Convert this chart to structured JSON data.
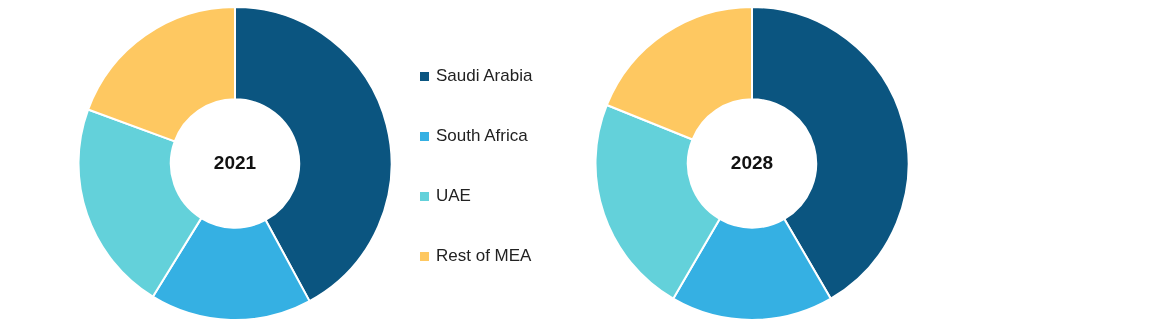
{
  "chart_data": {
    "type": "donut",
    "categories": [
      "Saudi Arabia",
      "South Africa",
      "UAE",
      "Rest of MEA"
    ],
    "colors": [
      "#0b5580",
      "#35b0e3",
      "#63d1da",
      "#fec861"
    ],
    "legend": "right",
    "series": [
      {
        "name": "2021",
        "values": [
          42.1,
          16.7,
          21.8,
          19.4
        ]
      },
      {
        "name": "2028",
        "values": [
          41.6,
          16.8,
          22.7,
          18.9
        ]
      }
    ]
  }
}
